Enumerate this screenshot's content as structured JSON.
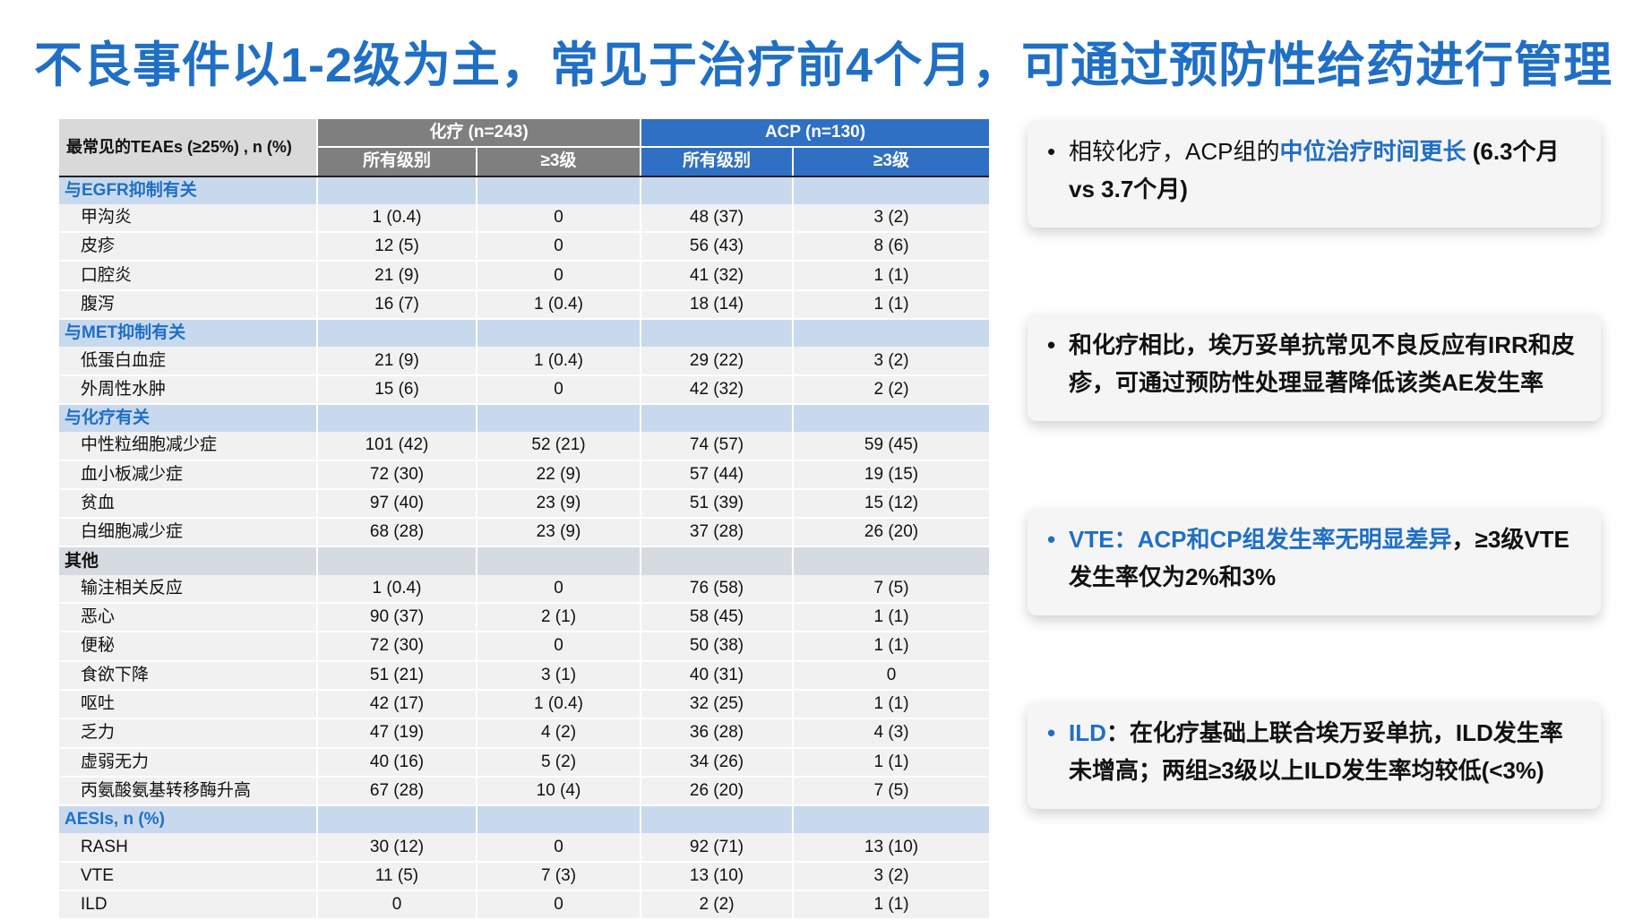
{
  "title": "不良事件以1-2级为主，常见于治疗前4个月，可通过预防性给药进行管理",
  "table": {
    "label_header": "最常见的TEAEs (≥25%) , n (%)",
    "chemo_header": "化疗 (n=243)",
    "acp_header": "ACP (n=130)",
    "sub_all": "所有级别",
    "sub_g3": "≥3级",
    "sections": [
      {
        "name": "与EGFR抑制有关",
        "style": "blue",
        "rows": [
          [
            "甲沟炎",
            "1 (0.4)",
            "0",
            "48 (37)",
            "3 (2)"
          ],
          [
            "皮疹",
            "12 (5)",
            "0",
            "56 (43)",
            "8 (6)"
          ],
          [
            "口腔炎",
            "21 (9)",
            "0",
            "41 (32)",
            "1 (1)"
          ],
          [
            "腹泻",
            "16 (7)",
            "1 (0.4)",
            "18 (14)",
            "1 (1)"
          ]
        ]
      },
      {
        "name": "与MET抑制有关",
        "style": "blue",
        "rows": [
          [
            "低蛋白血症",
            "21 (9)",
            "1 (0.4)",
            "29 (22)",
            "3 (2)"
          ],
          [
            "外周性水肿",
            "15 (6)",
            "0",
            "42 (32)",
            "2 (2)"
          ]
        ]
      },
      {
        "name": "与化疗有关",
        "style": "blue",
        "rows": [
          [
            "中性粒细胞减少症",
            "101 (42)",
            "52 (21)",
            "74 (57)",
            "59 (45)"
          ],
          [
            "血小板减少症",
            "72 (30)",
            "22 (9)",
            "57 (44)",
            "19 (15)"
          ],
          [
            "贫血",
            "97 (40)",
            "23 (9)",
            "51 (39)",
            "15 (12)"
          ],
          [
            "白细胞减少症",
            "68 (28)",
            "23 (9)",
            "37 (28)",
            "26 (20)"
          ]
        ]
      },
      {
        "name": "其他",
        "style": "gray",
        "rows": [
          [
            "输注相关反应",
            "1 (0.4)",
            "0",
            "76 (58)",
            "7 (5)"
          ],
          [
            "恶心",
            "90 (37)",
            "2 (1)",
            "58 (45)",
            "1 (1)"
          ],
          [
            "便秘",
            "72 (30)",
            "0",
            "50 (38)",
            "1 (1)"
          ],
          [
            "食欲下降",
            "51 (21)",
            "3 (1)",
            "40 (31)",
            "0"
          ],
          [
            "呕吐",
            "42 (17)",
            "1 (0.4)",
            "32 (25)",
            "1 (1)"
          ],
          [
            "乏力",
            "47 (19)",
            "4 (2)",
            "36 (28)",
            "4 (3)"
          ],
          [
            "虚弱无力",
            "40 (16)",
            "5 (2)",
            "34 (26)",
            "1 (1)"
          ],
          [
            "丙氨酸氨基转移酶升高",
            "67 (28)",
            "10 (4)",
            "26 (20)",
            "7 (5)"
          ]
        ]
      },
      {
        "name": "AESIs, n (%)",
        "style": "blue",
        "rows": [
          [
            "RASH",
            "30 (12)",
            "0",
            "92 (71)",
            "13 (10)"
          ],
          [
            "VTE",
            "11 (5)",
            "7 (3)",
            "13 (10)",
            "3 (2)"
          ],
          [
            "ILD",
            "0",
            "0",
            "2 (2)",
            "1 (1)"
          ]
        ]
      }
    ]
  },
  "cards": [
    {
      "bullet": "•",
      "pre": "相较化疗，ACP组的",
      "blue": "中位治疗时间更长",
      "post": " (6.3个月 vs 3.7个月)"
    },
    {
      "bullet": "•",
      "text": "和化疗相比，埃万妥单抗常见不良反应有IRR和皮疹，可通过预防性处理显著降低该类AE发生率"
    },
    {
      "bullet": "•",
      "blue": "VTE：ACP和CP组发生率无明显差异",
      "post": "，≥3级VTE发生率仅为2%和3%"
    },
    {
      "bullet": "•",
      "blue": "ILD",
      "post": "：在化疗基础上联合埃万妥单抗，ILD发生率未增高；两组≥3级以上ILD发生率均较低(<3%)"
    }
  ],
  "colors": {
    "title": "#1f6fc5",
    "chemo": "#7f7f7f",
    "acp": "#2f6fc4",
    "section_blue": "#c8d9ee",
    "section_gray": "#d6dbe1"
  }
}
